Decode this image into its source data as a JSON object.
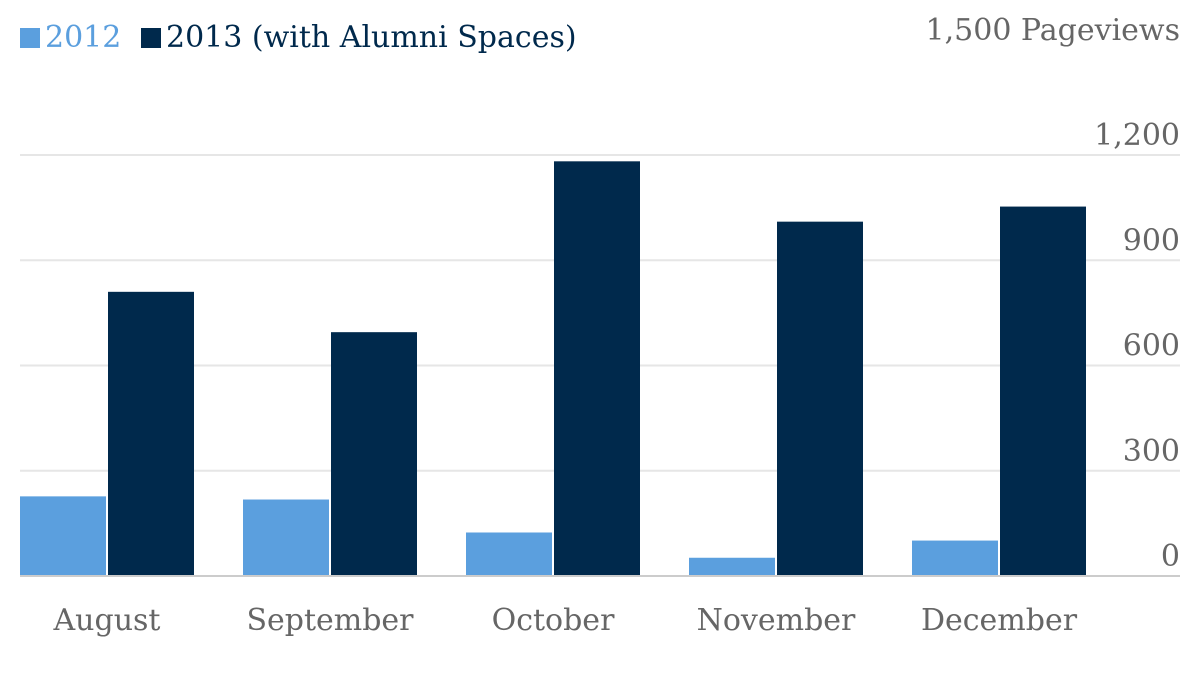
{
  "chart_data": {
    "type": "bar",
    "title": "",
    "xlabel": "",
    "ylabel": "",
    "y_unit_label": "1,500 Pageviews",
    "categories": [
      "August",
      "September",
      "October",
      "November",
      "December"
    ],
    "series": [
      {
        "name": "2012",
        "color": "#5b9fde",
        "values": [
          227,
          218,
          124,
          52,
          101
        ]
      },
      {
        "name": "2013 (with Alumni Spaces)",
        "color": "#00294c",
        "values": [
          810,
          695,
          1182,
          1010,
          1053
        ]
      }
    ],
    "ylim": [
      0,
      1500
    ],
    "yticks": [
      0,
      300,
      600,
      900,
      1200
    ],
    "ytick_labels": [
      "0",
      "300",
      "600",
      "900",
      "1,200"
    ],
    "legend_position": "top-left",
    "grid": true,
    "y_axis_side": "right"
  }
}
